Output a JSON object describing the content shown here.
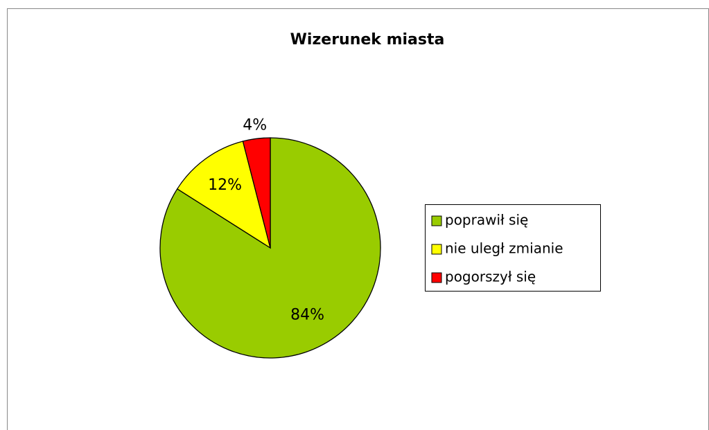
{
  "chart_data": {
    "type": "pie",
    "title": "Wizerunek miasta",
    "categories": [
      "poprawił się",
      "nie uległ zmianie",
      "pogorszył się"
    ],
    "values": [
      84,
      12,
      4
    ],
    "value_labels": [
      "84%",
      "12%",
      "4%"
    ],
    "colors": [
      "#99cc00",
      "#ffff00",
      "#ff0000"
    ],
    "legend": "right"
  }
}
